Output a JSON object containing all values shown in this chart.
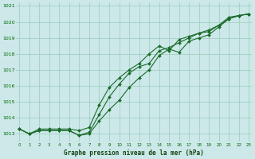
{
  "title": "Graphe pression niveau de la mer (hPa)",
  "bg_color": "#cce8e8",
  "grid_color": "#99ccbb",
  "line_color": "#1a6b2a",
  "marker_color": "#1a6b2a",
  "x_min": 0,
  "x_max": 23,
  "y_min": 1012.5,
  "y_max": 1021.2,
  "series_x": [
    0,
    1,
    2,
    3,
    4,
    5,
    6,
    7,
    8,
    9,
    10,
    11,
    12,
    13,
    14,
    15,
    16,
    17,
    18,
    19,
    20,
    21,
    22,
    23
  ],
  "values1": [
    1013.3,
    1013.0,
    1013.2,
    1013.2,
    1013.2,
    1013.2,
    1012.9,
    1013.0,
    1013.8,
    1014.5,
    1015.1,
    1015.9,
    1016.5,
    1017.0,
    1017.9,
    1018.3,
    1018.1,
    1018.8,
    1019.0,
    1019.2,
    1019.7,
    1020.2,
    1020.4,
    1020.5
  ],
  "values2": [
    1013.3,
    1013.0,
    1013.2,
    1013.2,
    1013.2,
    1013.2,
    1012.9,
    1013.1,
    1014.2,
    1015.3,
    1016.1,
    1016.8,
    1017.2,
    1017.4,
    1018.2,
    1018.4,
    1018.7,
    1019.0,
    1019.3,
    1019.5,
    1019.8,
    1020.3,
    1020.4,
    1020.5
  ],
  "values3": [
    1013.3,
    1013.0,
    1013.3,
    1013.3,
    1013.3,
    1013.3,
    1013.2,
    1013.4,
    1014.8,
    1015.9,
    1016.5,
    1017.0,
    1017.4,
    1018.0,
    1018.5,
    1018.2,
    1018.9,
    1019.1,
    1019.3,
    1019.4,
    1019.8,
    1020.2,
    1020.4,
    1020.5
  ],
  "yticks": [
    1013,
    1014,
    1015,
    1016,
    1017,
    1018,
    1019,
    1020,
    1021
  ],
  "xticks": [
    0,
    1,
    2,
    3,
    4,
    5,
    6,
    7,
    8,
    9,
    10,
    11,
    12,
    13,
    14,
    15,
    16,
    17,
    18,
    19,
    20,
    21,
    22,
    23
  ]
}
